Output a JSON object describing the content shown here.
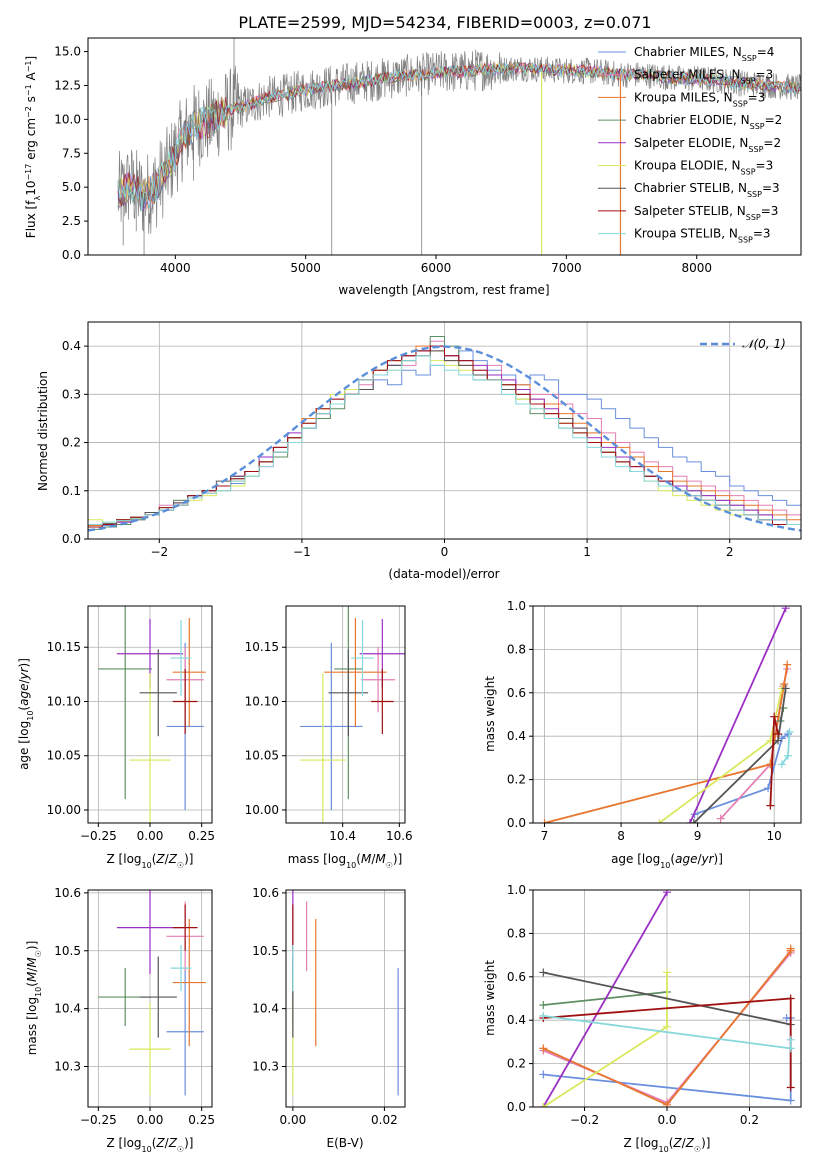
{
  "figure_title": "PLATE=2599, MJD=54234, FIBERID=0003, z=0.071",
  "colors": {
    "Chabrier MILES": "#6a8fdc",
    "Salpeter MILES": "#e37fb2",
    "Kroupa MILES": "#e7762e",
    "Chabrier ELODIE": "#5f8f62",
    "Salpeter ELODIE": "#9b30c4",
    "Kroupa ELODIE": "#d9e85c",
    "Chabrier STELIB": "#555555",
    "Salpeter STELIB": "#a01010",
    "Kroupa STELIB": "#86d8dc",
    "spectrum": "#808080",
    "normal_curve": "#5b8fd9"
  },
  "chart_data": [
    {
      "id": "spectrum",
      "type": "line",
      "title": "PLATE=2599, MJD=54234, FIBERID=0003, z=0.071",
      "xlabel": "wavelength [Angstrom, rest frame]",
      "ylabel": "Flux [f_λ10^-17 erg cm^-2 s^-1 A^-1]",
      "xlim": [
        3330,
        8800
      ],
      "ylim": [
        0,
        16
      ],
      "xticks": [
        4000,
        5000,
        6000,
        7000,
        8000
      ],
      "yticks": [
        0.0,
        2.5,
        5.0,
        7.5,
        10.0,
        12.5,
        15.0
      ],
      "legend_position": "right",
      "legend": [
        "Chabrier MILES, N_SSP=4",
        "Salpeter MILES, N_SSP=3",
        "Kroupa MILES, N_SSP=3",
        "Chabrier ELODIE, N_SSP=2",
        "Salpeter ELODIE, N_SSP=2",
        "Kroupa ELODIE, N_SSP=3",
        "Chabrier STELIB, N_SSP=3",
        "Salpeter STELIB, N_SSP=3",
        "Kroupa STELIB, N_SSP=3"
      ],
      "model_x": [
        3580,
        3650,
        3750,
        3850,
        3950,
        4050,
        4150,
        4250,
        4350,
        4450,
        4550,
        4700,
        4850,
        5000,
        5150,
        5300,
        5450,
        5600,
        5750,
        5900,
        6050,
        6200,
        6350,
        6500,
        6650,
        6800,
        6950,
        7100,
        7250,
        7400,
        7550,
        7700,
        7850,
        8000,
        8150,
        8300,
        8450,
        8600,
        8800
      ],
      "model_y": [
        4.5,
        5.2,
        4.3,
        5.0,
        6.5,
        8.5,
        9.6,
        9.8,
        10.4,
        10.8,
        11.0,
        11.6,
        11.8,
        12.2,
        12.4,
        12.6,
        12.8,
        13.0,
        13.2,
        13.3,
        13.5,
        13.5,
        13.7,
        13.7,
        13.8,
        13.7,
        13.6,
        13.6,
        13.5,
        13.3,
        13.3,
        13.2,
        13.0,
        13.0,
        12.9,
        12.7,
        12.6,
        12.5,
        12.3
      ],
      "x_axis_limit_note": ""
    },
    {
      "id": "residuals",
      "type": "line",
      "xlabel": "(data-model)/error",
      "ylabel": "Normed distribution",
      "xlim": [
        -2.5,
        2.5
      ],
      "ylim": [
        0,
        0.45
      ],
      "xticks": [
        -2,
        -1,
        0,
        1,
        2
      ],
      "yticks": [
        0.0,
        0.1,
        0.2,
        0.3,
        0.4
      ],
      "legend_position": "top-right",
      "legend": [
        "𝒩(0, 1)"
      ],
      "grid": true,
      "bin_width": 0.1
    },
    {
      "id": "age_vs_Z",
      "type": "scatter",
      "xlabel": "Z [log10(Z/Z☉)]",
      "ylabel": "age  [log10(age/yr)]",
      "xlim": [
        -0.3,
        0.3
      ],
      "ylim": [
        9.988,
        10.188
      ],
      "xticks": [
        -0.25,
        0.0,
        0.25
      ],
      "yticks": [
        10.0,
        10.05,
        10.1,
        10.15
      ],
      "grid": true
    },
    {
      "id": "age_vs_mass",
      "type": "scatter",
      "xlabel": "mass [log10(M/M☉)]",
      "ylabel": "",
      "xlim": [
        10.2,
        10.62
      ],
      "ylim": [
        9.988,
        10.188
      ],
      "xticks": [
        10.4,
        10.6
      ],
      "yticks": [
        10.0,
        10.05,
        10.1,
        10.15
      ],
      "grid": true
    },
    {
      "id": "massweight_vs_age",
      "type": "line",
      "xlabel": "age  [log10(age/yr)]",
      "ylabel": "mass weight",
      "xlim": [
        6.85,
        10.35
      ],
      "ylim": [
        0,
        1
      ],
      "xticks": [
        7,
        8,
        9,
        10
      ],
      "yticks": [
        0.0,
        0.2,
        0.4,
        0.6,
        0.8,
        1.0
      ],
      "grid": true
    },
    {
      "id": "mass_vs_Z",
      "type": "scatter",
      "xlabel": "Z [log10(Z/Z☉)]",
      "ylabel": "mass [log10(M/M☉)]",
      "xlim": [
        -0.3,
        0.3
      ],
      "ylim": [
        10.23,
        10.605
      ],
      "xticks": [
        -0.25,
        0.0,
        0.25
      ],
      "yticks": [
        10.3,
        10.4,
        10.5,
        10.6
      ],
      "grid": true
    },
    {
      "id": "mass_vs_EBV",
      "type": "scatter",
      "xlabel": "E(B-V)",
      "ylabel": "",
      "xlim": [
        -0.0015,
        0.0245
      ],
      "ylim": [
        10.23,
        10.605
      ],
      "xticks": [
        0.0,
        0.02
      ],
      "yticks": [
        10.3,
        10.4,
        10.5,
        10.6
      ],
      "grid": true
    },
    {
      "id": "massweight_vs_Z",
      "type": "line",
      "xlabel": "Z [log10(Z/Z☉)]",
      "ylabel": "mass weight",
      "xlim": [
        -0.325,
        0.325
      ],
      "ylim": [
        0,
        1
      ],
      "xticks": [
        -0.2,
        0.0,
        0.2
      ],
      "yticks": [
        0.0,
        0.2,
        0.4,
        0.6,
        0.8,
        1.0
      ],
      "grid": true
    }
  ],
  "models": [
    {
      "name": "Chabrier MILES",
      "nssp": "4",
      "Z": 0.17,
      "Zerr": 0.09,
      "age": 10.077,
      "ageerr": 0.077,
      "mass": 10.36,
      "masserr": 0.11,
      "ebv": 0.023,
      "mw_age": [
        [
          8.96,
          0.04
        ],
        [
          9.92,
          0.16
        ],
        [
          10.1,
          0.39
        ],
        [
          10.18,
          0.41
        ]
      ],
      "mw_Z": [
        [
          -0.3,
          0.15
        ],
        [
          0.3,
          0.03
        ],
        [
          0.3,
          0.41
        ],
        [
          0.29,
          0.41
        ]
      ],
      "hist": [
        0.025,
        0.028,
        0.035,
        0.04,
        0.055,
        0.06,
        0.07,
        0.09,
        0.1,
        0.1,
        0.115,
        0.13,
        0.16,
        0.18,
        0.21,
        0.23,
        0.25,
        0.29,
        0.3,
        0.31,
        0.33,
        0.32,
        0.35,
        0.34,
        0.36,
        0.38,
        0.39,
        0.37,
        0.35,
        0.34,
        0.32,
        0.34,
        0.33,
        0.3,
        0.3,
        0.29,
        0.27,
        0.25,
        0.23,
        0.21,
        0.19,
        0.17,
        0.16,
        0.14,
        0.13,
        0.11,
        0.1,
        0.09,
        0.08,
        0.07
      ]
    },
    {
      "name": "Salpeter MILES",
      "nssp": "3",
      "Z": 0.17,
      "Zerr": 0.09,
      "age": 10.12,
      "ageerr": 0.03,
      "mass": 10.525,
      "masserr": 0.06,
      "ebv": 0.003,
      "mw_age": [
        [
          9.3,
          0.02
        ],
        [
          9.95,
          0.27
        ],
        [
          10.12,
          0.63
        ],
        [
          10.17,
          0.71
        ]
      ],
      "mw_Z": [
        [
          -0.3,
          0.26
        ],
        [
          0.0,
          0.02
        ],
        [
          0.3,
          0.71
        ],
        [
          0.3,
          0.72
        ]
      ],
      "hist": [
        0.03,
        0.03,
        0.04,
        0.04,
        0.05,
        0.07,
        0.08,
        0.09,
        0.1,
        0.11,
        0.13,
        0.14,
        0.15,
        0.18,
        0.2,
        0.24,
        0.27,
        0.29,
        0.31,
        0.32,
        0.34,
        0.37,
        0.36,
        0.39,
        0.41,
        0.38,
        0.37,
        0.35,
        0.36,
        0.33,
        0.31,
        0.3,
        0.3,
        0.28,
        0.26,
        0.25,
        0.22,
        0.2,
        0.18,
        0.16,
        0.15,
        0.13,
        0.12,
        0.11,
        0.1,
        0.09,
        0.08,
        0.07,
        0.06,
        0.05
      ]
    },
    {
      "name": "Kroupa MILES",
      "nssp": "3",
      "Z": 0.19,
      "Zerr": 0.08,
      "age": 10.127,
      "ageerr": 0.05,
      "mass": 10.445,
      "masserr": 0.11,
      "ebv": 0.005,
      "mw_age": [
        [
          7.0,
          0.0
        ],
        [
          9.95,
          0.27
        ],
        [
          10.13,
          0.64
        ],
        [
          10.17,
          0.73
        ]
      ],
      "mw_Z": [
        [
          -0.3,
          0.27
        ],
        [
          0.0,
          0.01
        ],
        [
          0.3,
          0.72
        ],
        [
          0.3,
          0.73
        ]
      ],
      "hist": [
        0.028,
        0.03,
        0.036,
        0.042,
        0.05,
        0.06,
        0.075,
        0.085,
        0.095,
        0.11,
        0.12,
        0.14,
        0.16,
        0.19,
        0.21,
        0.25,
        0.27,
        0.28,
        0.3,
        0.33,
        0.35,
        0.37,
        0.38,
        0.4,
        0.39,
        0.37,
        0.36,
        0.34,
        0.33,
        0.32,
        0.32,
        0.29,
        0.28,
        0.26,
        0.24,
        0.22,
        0.2,
        0.19,
        0.17,
        0.15,
        0.14,
        0.12,
        0.11,
        0.1,
        0.09,
        0.08,
        0.07,
        0.06,
        0.05,
        0.04
      ]
    },
    {
      "name": "Chabrier ELODIE",
      "nssp": "2",
      "Z": -0.12,
      "Zerr": 0.13,
      "age": 10.13,
      "ageerr": 0.12,
      "mass": 10.42,
      "masserr": 0.05,
      "ebv": 0.0,
      "mw_age": [
        [
          10.08,
          0.47
        ],
        [
          10.12,
          0.53
        ]
      ],
      "mw_Z": [
        [
          -0.3,
          0.47
        ],
        [
          0.0,
          0.53
        ]
      ],
      "hist": [
        0.02,
        0.025,
        0.03,
        0.04,
        0.05,
        0.065,
        0.08,
        0.09,
        0.1,
        0.11,
        0.125,
        0.14,
        0.16,
        0.17,
        0.2,
        0.23,
        0.25,
        0.27,
        0.31,
        0.33,
        0.35,
        0.36,
        0.38,
        0.39,
        0.42,
        0.4,
        0.37,
        0.33,
        0.33,
        0.32,
        0.29,
        0.26,
        0.25,
        0.23,
        0.22,
        0.2,
        0.18,
        0.16,
        0.14,
        0.13,
        0.12,
        0.11,
        0.1,
        0.09,
        0.08,
        0.07,
        0.06,
        0.05,
        0.04,
        0.03
      ]
    },
    {
      "name": "Salpeter ELODIE",
      "nssp": "2",
      "Z": 0.0,
      "Zerr": 0.16,
      "age": 10.144,
      "ageerr": 0.032,
      "mass": 10.54,
      "masserr": 0.08,
      "ebv": 0.0,
      "mw_age": [
        [
          8.9,
          0.0
        ],
        [
          10.15,
          0.99
        ]
      ],
      "mw_Z": [
        [
          -0.3,
          0.0
        ],
        [
          0.0,
          0.99
        ]
      ],
      "hist": [
        0.025,
        0.03,
        0.035,
        0.045,
        0.05,
        0.06,
        0.075,
        0.09,
        0.1,
        0.11,
        0.13,
        0.14,
        0.17,
        0.19,
        0.22,
        0.24,
        0.26,
        0.28,
        0.3,
        0.33,
        0.35,
        0.36,
        0.38,
        0.39,
        0.4,
        0.38,
        0.37,
        0.36,
        0.34,
        0.33,
        0.31,
        0.29,
        0.27,
        0.25,
        0.23,
        0.21,
        0.19,
        0.17,
        0.15,
        0.13,
        0.12,
        0.11,
        0.1,
        0.09,
        0.08,
        0.07,
        0.06,
        0.05,
        0.04,
        0.03
      ]
    },
    {
      "name": "Kroupa ELODIE",
      "nssp": "3",
      "Z": 0.0,
      "Zerr": 0.1,
      "age": 10.046,
      "ageerr": 0.08,
      "mass": 10.33,
      "masserr": 0.08,
      "ebv": 0.0,
      "mw_age": [
        [
          8.5,
          0.0
        ],
        [
          9.95,
          0.38
        ],
        [
          10.1,
          0.62
        ]
      ],
      "mw_Z": [
        [
          -0.3,
          0.0
        ],
        [
          0.0,
          0.37
        ],
        [
          0.0,
          0.62
        ]
      ],
      "hist": [
        0.04,
        0.035,
        0.04,
        0.045,
        0.05,
        0.06,
        0.07,
        0.08,
        0.09,
        0.1,
        0.11,
        0.13,
        0.16,
        0.18,
        0.21,
        0.24,
        0.27,
        0.3,
        0.31,
        0.33,
        0.35,
        0.35,
        0.37,
        0.38,
        0.37,
        0.36,
        0.35,
        0.34,
        0.33,
        0.31,
        0.29,
        0.27,
        0.25,
        0.24,
        0.22,
        0.2,
        0.18,
        0.16,
        0.14,
        0.12,
        0.1,
        0.09,
        0.08,
        0.07,
        0.06,
        0.05,
        0.05,
        0.04,
        0.03,
        0.03
      ]
    },
    {
      "name": "Chabrier STELIB",
      "nssp": "3",
      "Z": 0.04,
      "Zerr": 0.09,
      "age": 10.108,
      "ageerr": 0.04,
      "mass": 10.42,
      "masserr": 0.07,
      "ebv": 0.0,
      "mw_age": [
        [
          8.95,
          0.0
        ],
        [
          10.05,
          0.38
        ],
        [
          10.15,
          0.62
        ]
      ],
      "mw_Z": [
        [
          -0.3,
          0.62
        ],
        [
          0.3,
          0.38
        ]
      ],
      "hist": [
        0.03,
        0.032,
        0.04,
        0.045,
        0.055,
        0.06,
        0.075,
        0.09,
        0.1,
        0.12,
        0.13,
        0.14,
        0.16,
        0.18,
        0.21,
        0.23,
        0.26,
        0.28,
        0.3,
        0.31,
        0.34,
        0.36,
        0.37,
        0.38,
        0.39,
        0.37,
        0.36,
        0.34,
        0.33,
        0.31,
        0.3,
        0.28,
        0.26,
        0.25,
        0.23,
        0.2,
        0.18,
        0.16,
        0.14,
        0.13,
        0.11,
        0.1,
        0.09,
        0.08,
        0.07,
        0.06,
        0.05,
        0.04,
        0.03,
        0.03
      ]
    },
    {
      "name": "Salpeter STELIB",
      "nssp": "3",
      "Z": 0.17,
      "Zerr": 0.06,
      "age": 10.1,
      "ageerr": 0.03,
      "mass": 10.54,
      "masserr": 0.04,
      "ebv": 0.0,
      "mw_age": [
        [
          9.95,
          0.08
        ],
        [
          10.0,
          0.49
        ],
        [
          10.05,
          0.41
        ]
      ],
      "mw_Z": [
        [
          -0.3,
          0.41
        ],
        [
          0.3,
          0.5
        ],
        [
          0.3,
          0.09
        ]
      ],
      "hist": [
        0.025,
        0.03,
        0.04,
        0.045,
        0.05,
        0.065,
        0.07,
        0.09,
        0.1,
        0.11,
        0.125,
        0.14,
        0.16,
        0.19,
        0.21,
        0.24,
        0.27,
        0.29,
        0.3,
        0.33,
        0.35,
        0.37,
        0.38,
        0.39,
        0.4,
        0.38,
        0.37,
        0.35,
        0.33,
        0.32,
        0.3,
        0.28,
        0.26,
        0.24,
        0.22,
        0.2,
        0.18,
        0.16,
        0.15,
        0.13,
        0.12,
        0.1,
        0.09,
        0.08,
        0.07,
        0.06,
        0.05,
        0.04,
        0.03,
        0.03
      ]
    },
    {
      "name": "Kroupa STELIB",
      "nssp": "3",
      "Z": 0.15,
      "Zerr": 0.05,
      "age": 10.14,
      "ageerr": 0.035,
      "mass": 10.47,
      "masserr": 0.04,
      "ebv": 0.0,
      "mw_age": [
        [
          10.1,
          0.27
        ],
        [
          10.18,
          0.31
        ],
        [
          10.2,
          0.42
        ]
      ],
      "mw_Z": [
        [
          -0.3,
          0.42
        ],
        [
          0.3,
          0.27
        ],
        [
          0.3,
          0.31
        ]
      ],
      "hist": [
        0.03,
        0.035,
        0.038,
        0.042,
        0.05,
        0.06,
        0.07,
        0.085,
        0.095,
        0.1,
        0.12,
        0.13,
        0.15,
        0.18,
        0.2,
        0.23,
        0.26,
        0.28,
        0.3,
        0.33,
        0.34,
        0.35,
        0.37,
        0.38,
        0.36,
        0.35,
        0.34,
        0.33,
        0.33,
        0.3,
        0.28,
        0.27,
        0.25,
        0.23,
        0.21,
        0.19,
        0.17,
        0.15,
        0.14,
        0.12,
        0.11,
        0.1,
        0.09,
        0.08,
        0.07,
        0.06,
        0.05,
        0.04,
        0.04,
        0.03
      ]
    }
  ]
}
